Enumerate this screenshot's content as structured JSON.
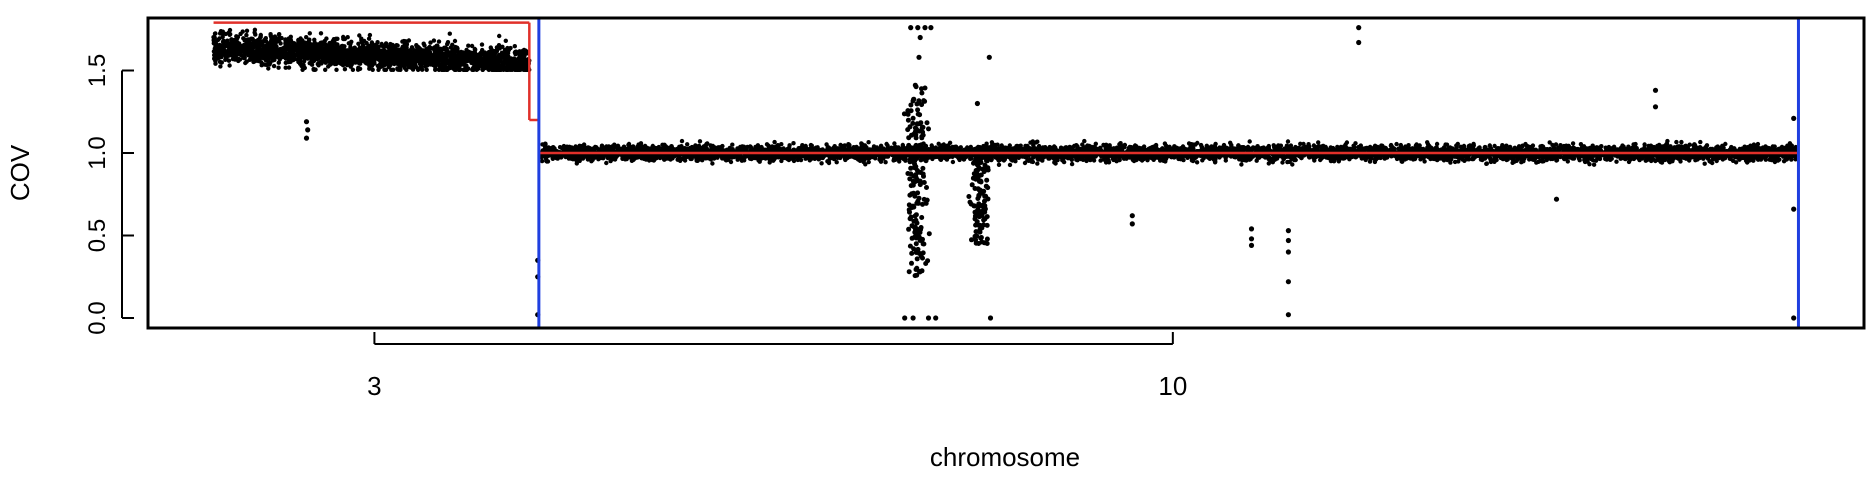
{
  "chart_data": {
    "type": "scatter",
    "xlabel": "chromosome",
    "ylabel": "COV",
    "x_ticks": [
      {
        "label": "3",
        "pos": 0.31
      },
      {
        "label": "10",
        "pos": 0.98
      }
    ],
    "y_ticks": [
      0.0,
      0.5,
      1.0,
      1.5
    ],
    "ylim": [
      0,
      1.8
    ],
    "xlim": [
      0.12,
      1.56
    ],
    "chromosome_boundaries": [
      0.448,
      1.505
    ],
    "colors": {
      "points": "#000000",
      "segments": "#e0302a",
      "boundaries": "#1f3fe0"
    },
    "segments": [
      {
        "x": [
          0.175,
          0.44
        ],
        "y": [
          1.79,
          1.79
        ]
      },
      {
        "x": [
          0.44,
          0.44
        ],
        "y": [
          1.79,
          1.2
        ]
      },
      {
        "x": [
          0.44,
          0.448
        ],
        "y": [
          1.2,
          1.2
        ]
      },
      {
        "x": [
          0.448,
          1.505
        ],
        "y": [
          1.0,
          1.0
        ]
      }
    ],
    "dense_regions": [
      {
        "x_start": 0.175,
        "x_end": 0.44,
        "y_start": 1.64,
        "y_end": 1.55,
        "spread": 0.085,
        "count": 2200
      },
      {
        "x_start": 0.45,
        "x_end": 1.503,
        "y_start": 1.0,
        "y_end": 1.0,
        "spread": 0.045,
        "count": 7000
      }
    ],
    "vertical_clusters": [
      {
        "x": 0.765,
        "y_min": 0.25,
        "y_max": 1.42,
        "count": 170
      },
      {
        "x": 0.818,
        "y_min": 0.45,
        "y_max": 1.0,
        "count": 110
      }
    ],
    "outliers": [
      {
        "x": 0.253,
        "y": 1.19
      },
      {
        "x": 0.254,
        "y": 1.14
      },
      {
        "x": 0.253,
        "y": 1.09
      },
      {
        "x": 0.447,
        "y": 0.35
      },
      {
        "x": 0.447,
        "y": 0.25
      },
      {
        "x": 0.447,
        "y": 0.02
      },
      {
        "x": 0.76,
        "y": 1.76
      },
      {
        "x": 0.766,
        "y": 1.76
      },
      {
        "x": 0.772,
        "y": 1.76
      },
      {
        "x": 0.777,
        "y": 1.76
      },
      {
        "x": 0.768,
        "y": 1.7
      },
      {
        "x": 0.767,
        "y": 1.58
      },
      {
        "x": 0.826,
        "y": 1.58
      },
      {
        "x": 0.816,
        "y": 1.3
      },
      {
        "x": 0.755,
        "y": 0.0
      },
      {
        "x": 0.762,
        "y": 0.0
      },
      {
        "x": 0.775,
        "y": 0.0
      },
      {
        "x": 0.781,
        "y": 0.0
      },
      {
        "x": 0.827,
        "y": 0.0
      },
      {
        "x": 0.946,
        "y": 0.62
      },
      {
        "x": 0.946,
        "y": 0.57
      },
      {
        "x": 1.046,
        "y": 0.54
      },
      {
        "x": 1.046,
        "y": 0.48
      },
      {
        "x": 1.046,
        "y": 0.44
      },
      {
        "x": 1.077,
        "y": 0.53
      },
      {
        "x": 1.077,
        "y": 0.47
      },
      {
        "x": 1.077,
        "y": 0.4
      },
      {
        "x": 1.077,
        "y": 0.22
      },
      {
        "x": 1.077,
        "y": 0.02
      },
      {
        "x": 1.136,
        "y": 1.76
      },
      {
        "x": 1.136,
        "y": 1.67
      },
      {
        "x": 1.385,
        "y": 1.38
      },
      {
        "x": 1.385,
        "y": 1.28
      },
      {
        "x": 1.302,
        "y": 0.72
      },
      {
        "x": 1.501,
        "y": 1.21
      },
      {
        "x": 1.501,
        "y": 0.66
      },
      {
        "x": 1.501,
        "y": 0.0
      }
    ]
  }
}
